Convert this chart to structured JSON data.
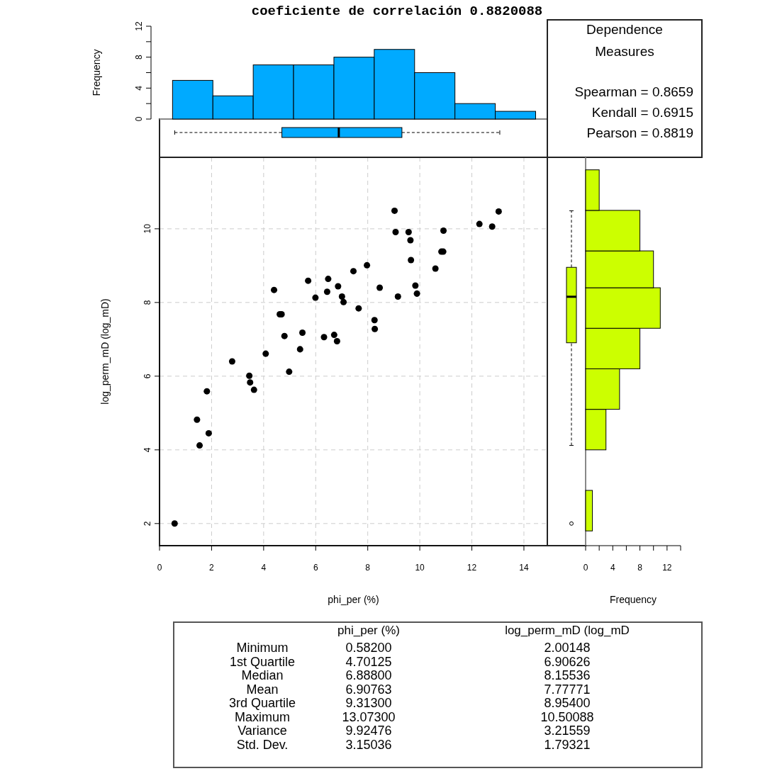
{
  "chart_data": [
    {
      "type": "histogram",
      "title": "coeficiente de correlación 0.8820088",
      "ylabel": "Frequency",
      "bins": [
        0.5,
        2.05,
        3.6,
        5.15,
        6.7,
        8.25,
        9.8,
        11.35,
        12.9,
        14.45
      ],
      "values": [
        5,
        3,
        7,
        7,
        8,
        9,
        6,
        2,
        1
      ],
      "color": "#00aaff",
      "xlim": [
        0,
        14.9
      ],
      "ylim": [
        0,
        12
      ],
      "yticks": [
        0,
        {
          "value": 2,
          "label": null
        },
        4,
        {
          "value": 6,
          "label": null
        },
        8,
        {
          "value": 10,
          "label": null
        },
        12
      ],
      "tick_labels": "y"
    },
    {
      "type": "other",
      "title": "Dependence Measures",
      "annotations": [
        "Spearman = 0.8659",
        "Kendall = 0.6915",
        "Pearson = 0.8819"
      ]
    },
    {
      "type": "scatter",
      "xlabel": "phi_per (%)",
      "ylabel": "log_perm_mD (log_mD)",
      "color": "#000000",
      "marker": "circle",
      "grid": true,
      "xlim": [
        0,
        14.9
      ],
      "ylim": [
        1.4,
        11.94
      ],
      "xticks": [
        0,
        2,
        4,
        6,
        8,
        10,
        12,
        14
      ],
      "yticks": [
        2,
        4,
        6,
        8,
        10
      ],
      "x": [
        0.58,
        1.44,
        1.54,
        1.89,
        1.82,
        2.79,
        3.45,
        3.48,
        3.63,
        4.08,
        4.4,
        4.62,
        4.69,
        4.8,
        4.98,
        5.4,
        5.49,
        5.71,
        5.99,
        6.32,
        6.44,
        6.48,
        6.71,
        6.82,
        6.86,
        7.01,
        7.07,
        7.45,
        7.65,
        7.97,
        8.26,
        8.27,
        8.46,
        9.03,
        9.07,
        9.16,
        9.57,
        9.64,
        9.66,
        9.83,
        9.89,
        10.6,
        10.83,
        10.9,
        10.91,
        12.29,
        12.78,
        13.03
      ],
      "values": [
        2.0,
        4.82,
        4.12,
        4.45,
        5.59,
        6.4,
        6.01,
        5.83,
        5.63,
        6.61,
        8.34,
        7.68,
        7.68,
        7.09,
        6.12,
        6.73,
        7.18,
        8.59,
        8.13,
        7.06,
        8.29,
        8.64,
        7.12,
        6.95,
        8.44,
        8.16,
        8.01,
        8.85,
        7.84,
        9.01,
        7.52,
        7.28,
        8.4,
        10.49,
        9.91,
        8.16,
        9.91,
        9.69,
        9.15,
        8.46,
        8.24,
        8.92,
        9.38,
        9.38,
        9.95,
        10.13,
        10.06,
        10.47
      ]
    },
    {
      "type": "histogram",
      "orientation": "horizontal",
      "xlabel": "Frequency",
      "bins": [
        1.8,
        2.9,
        4.0,
        5.1,
        6.2,
        7.3,
        8.4,
        9.4,
        10.5,
        11.6
      ],
      "values": [
        1,
        0,
        3,
        5,
        8,
        11,
        10,
        8,
        2
      ],
      "color": "#ccff00",
      "xlim": [
        0,
        14
      ],
      "xticks": [
        0,
        {
          "value": 2,
          "label": null
        },
        4,
        {
          "value": 6,
          "label": null
        },
        8,
        {
          "value": 10,
          "label": null
        },
        12,
        {
          "value": 14,
          "label": null
        }
      ],
      "ylim": [
        1.4,
        11.94
      ],
      "tick_labels": "x"
    },
    {
      "type": "other",
      "categories": [
        "Minimum",
        "1st Quartile",
        "Median",
        "Mean",
        "3rd Quartile",
        "Maximum",
        "Variance",
        "Std. Dev."
      ],
      "series": [
        {
          "name": "phi_per (%)",
          "values": [
            0.582,
            4.70125,
            6.888,
            6.90763,
            9.313,
            13.073,
            9.92476,
            3.15036
          ],
          "value_labels": [
            "0.58200",
            "4.70125",
            "6.88800",
            "6.90763",
            "9.31300",
            "13.07300",
            "9.92476",
            "3.15036"
          ]
        },
        {
          "name": "log_perm_mD (log_mD",
          "values": [
            2.00148,
            6.90626,
            8.15536,
            7.77771,
            8.954,
            10.50088,
            3.21559,
            1.79321
          ],
          "value_labels": [
            "2.00148",
            "6.90626",
            "8.15536",
            "7.77771",
            "8.95400",
            "10.50088",
            "3.21559",
            "1.79321"
          ]
        }
      ]
    }
  ]
}
